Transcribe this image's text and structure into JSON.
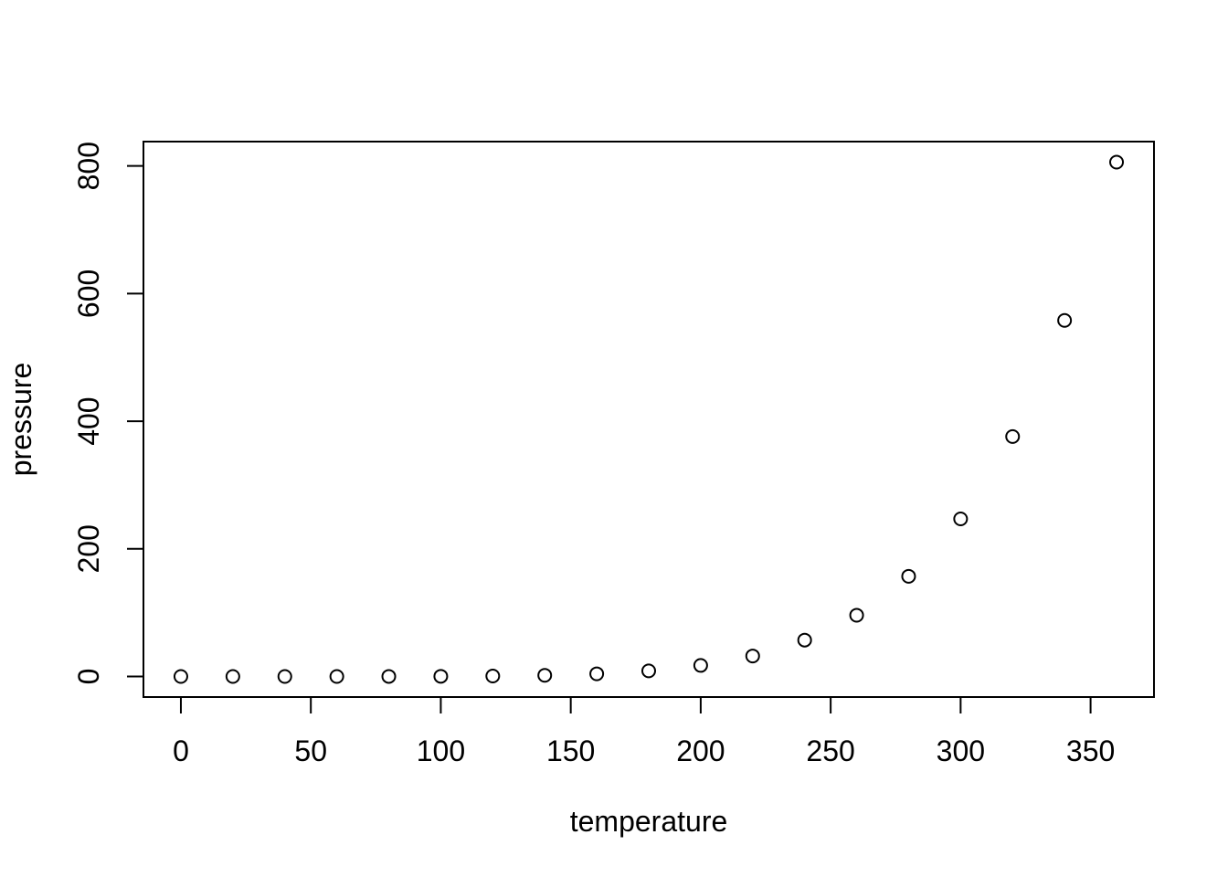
{
  "chart_data": {
    "type": "scatter",
    "title": "",
    "xlabel": "temperature",
    "ylabel": "pressure",
    "x": [
      0,
      20,
      40,
      60,
      80,
      100,
      120,
      140,
      160,
      180,
      200,
      220,
      240,
      260,
      280,
      300,
      320,
      340,
      360
    ],
    "y": [
      0.0002,
      0.0012,
      0.006,
      0.03,
      0.09,
      0.27,
      0.75,
      1.85,
      4.2,
      8.8,
      17.3,
      32.1,
      57,
      96,
      157,
      247,
      376,
      558,
      806
    ],
    "x_ticks": [
      0,
      50,
      100,
      150,
      200,
      250,
      300,
      350
    ],
    "y_ticks": [
      0,
      200,
      400,
      600,
      800
    ],
    "xlim": [
      -14.4,
      374.4
    ],
    "ylim": [
      -32.2,
      838.2
    ],
    "grid": false,
    "legend_position": "none",
    "marker": "open-circle",
    "foreground_color": "#000000",
    "background_color": "#ffffff"
  }
}
